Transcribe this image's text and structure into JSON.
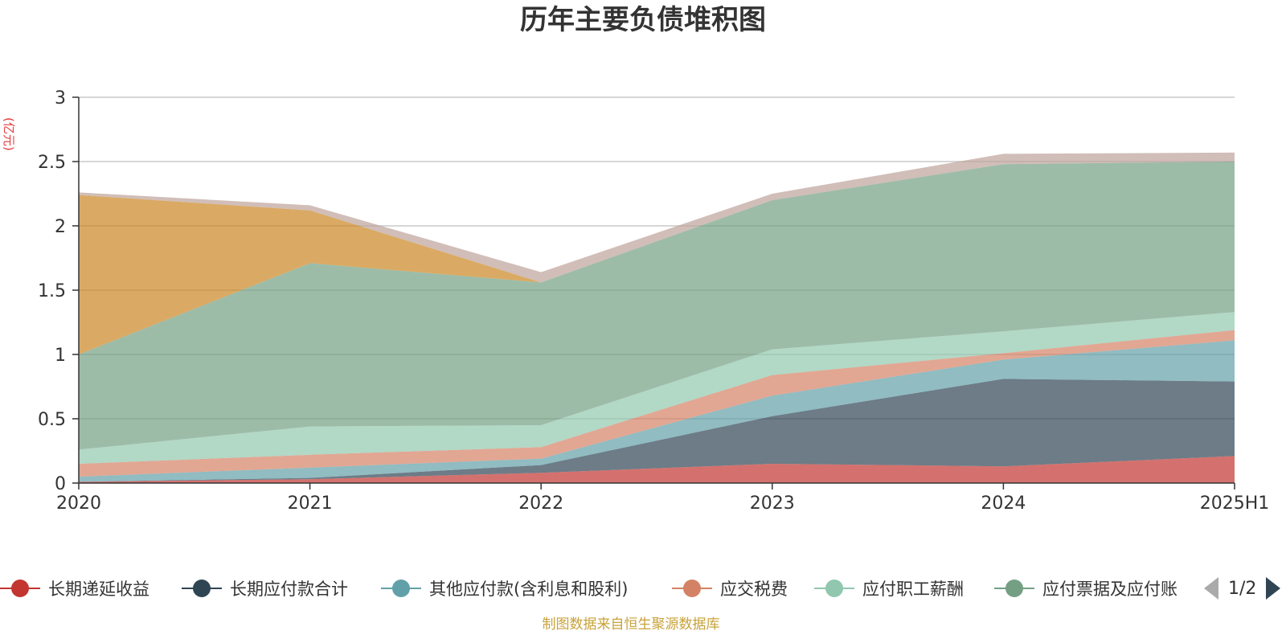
{
  "chart_data": {
    "type": "area",
    "stacked": true,
    "title": "历年主要负债堆积图",
    "ylabel": "(亿元)",
    "categories": [
      "2020",
      "2021",
      "2022",
      "2023",
      "2024",
      "2025H1"
    ],
    "ylim": [
      0,
      3
    ],
    "yticks": [
      "0",
      "0.5",
      "1",
      "1.5",
      "2",
      "2.5",
      "3"
    ],
    "grid": true,
    "legend_position": "bottom",
    "series": [
      {
        "name": "长期递延收益",
        "color": "#c23531",
        "values": [
          0.01,
          0.03,
          0.08,
          0.15,
          0.13,
          0.21
        ],
        "in_legend": true
      },
      {
        "name": "长期应付款合计",
        "color": "#2f4554",
        "values": [
          0.0,
          0.01,
          0.06,
          0.37,
          0.68,
          0.58
        ],
        "in_legend": true
      },
      {
        "name": "其他应付款(含利息和股利)",
        "color": "#61a0a8",
        "values": [
          0.04,
          0.08,
          0.05,
          0.16,
          0.15,
          0.32
        ],
        "in_legend": true
      },
      {
        "name": "应交税费",
        "color": "#d48265",
        "values": [
          0.1,
          0.1,
          0.09,
          0.16,
          0.05,
          0.08
        ],
        "in_legend": true
      },
      {
        "name": "应付职工薪酬",
        "color": "#91c7ae",
        "values": [
          0.11,
          0.22,
          0.17,
          0.2,
          0.17,
          0.14
        ],
        "in_legend": true
      },
      {
        "name": "应付票据及应付账款",
        "color": "#749f83",
        "values": [
          0.74,
          1.27,
          1.11,
          1.16,
          1.3,
          1.17
        ],
        "in_legend": true
      },
      {
        "name": "",
        "color": "#ca8622",
        "values": [
          1.24,
          0.41,
          0.0,
          0.0,
          0.0,
          0.0
        ],
        "in_legend": false
      },
      {
        "name": "",
        "color": "#bda29a",
        "values": [
          0.02,
          0.04,
          0.08,
          0.05,
          0.08,
          0.07
        ],
        "in_legend": false
      }
    ],
    "legend_truncated_last": "应付票据及应付账"
  },
  "legend_pager": {
    "text": "1/2"
  },
  "source_note": "制图数据来自恒生聚源数据库"
}
